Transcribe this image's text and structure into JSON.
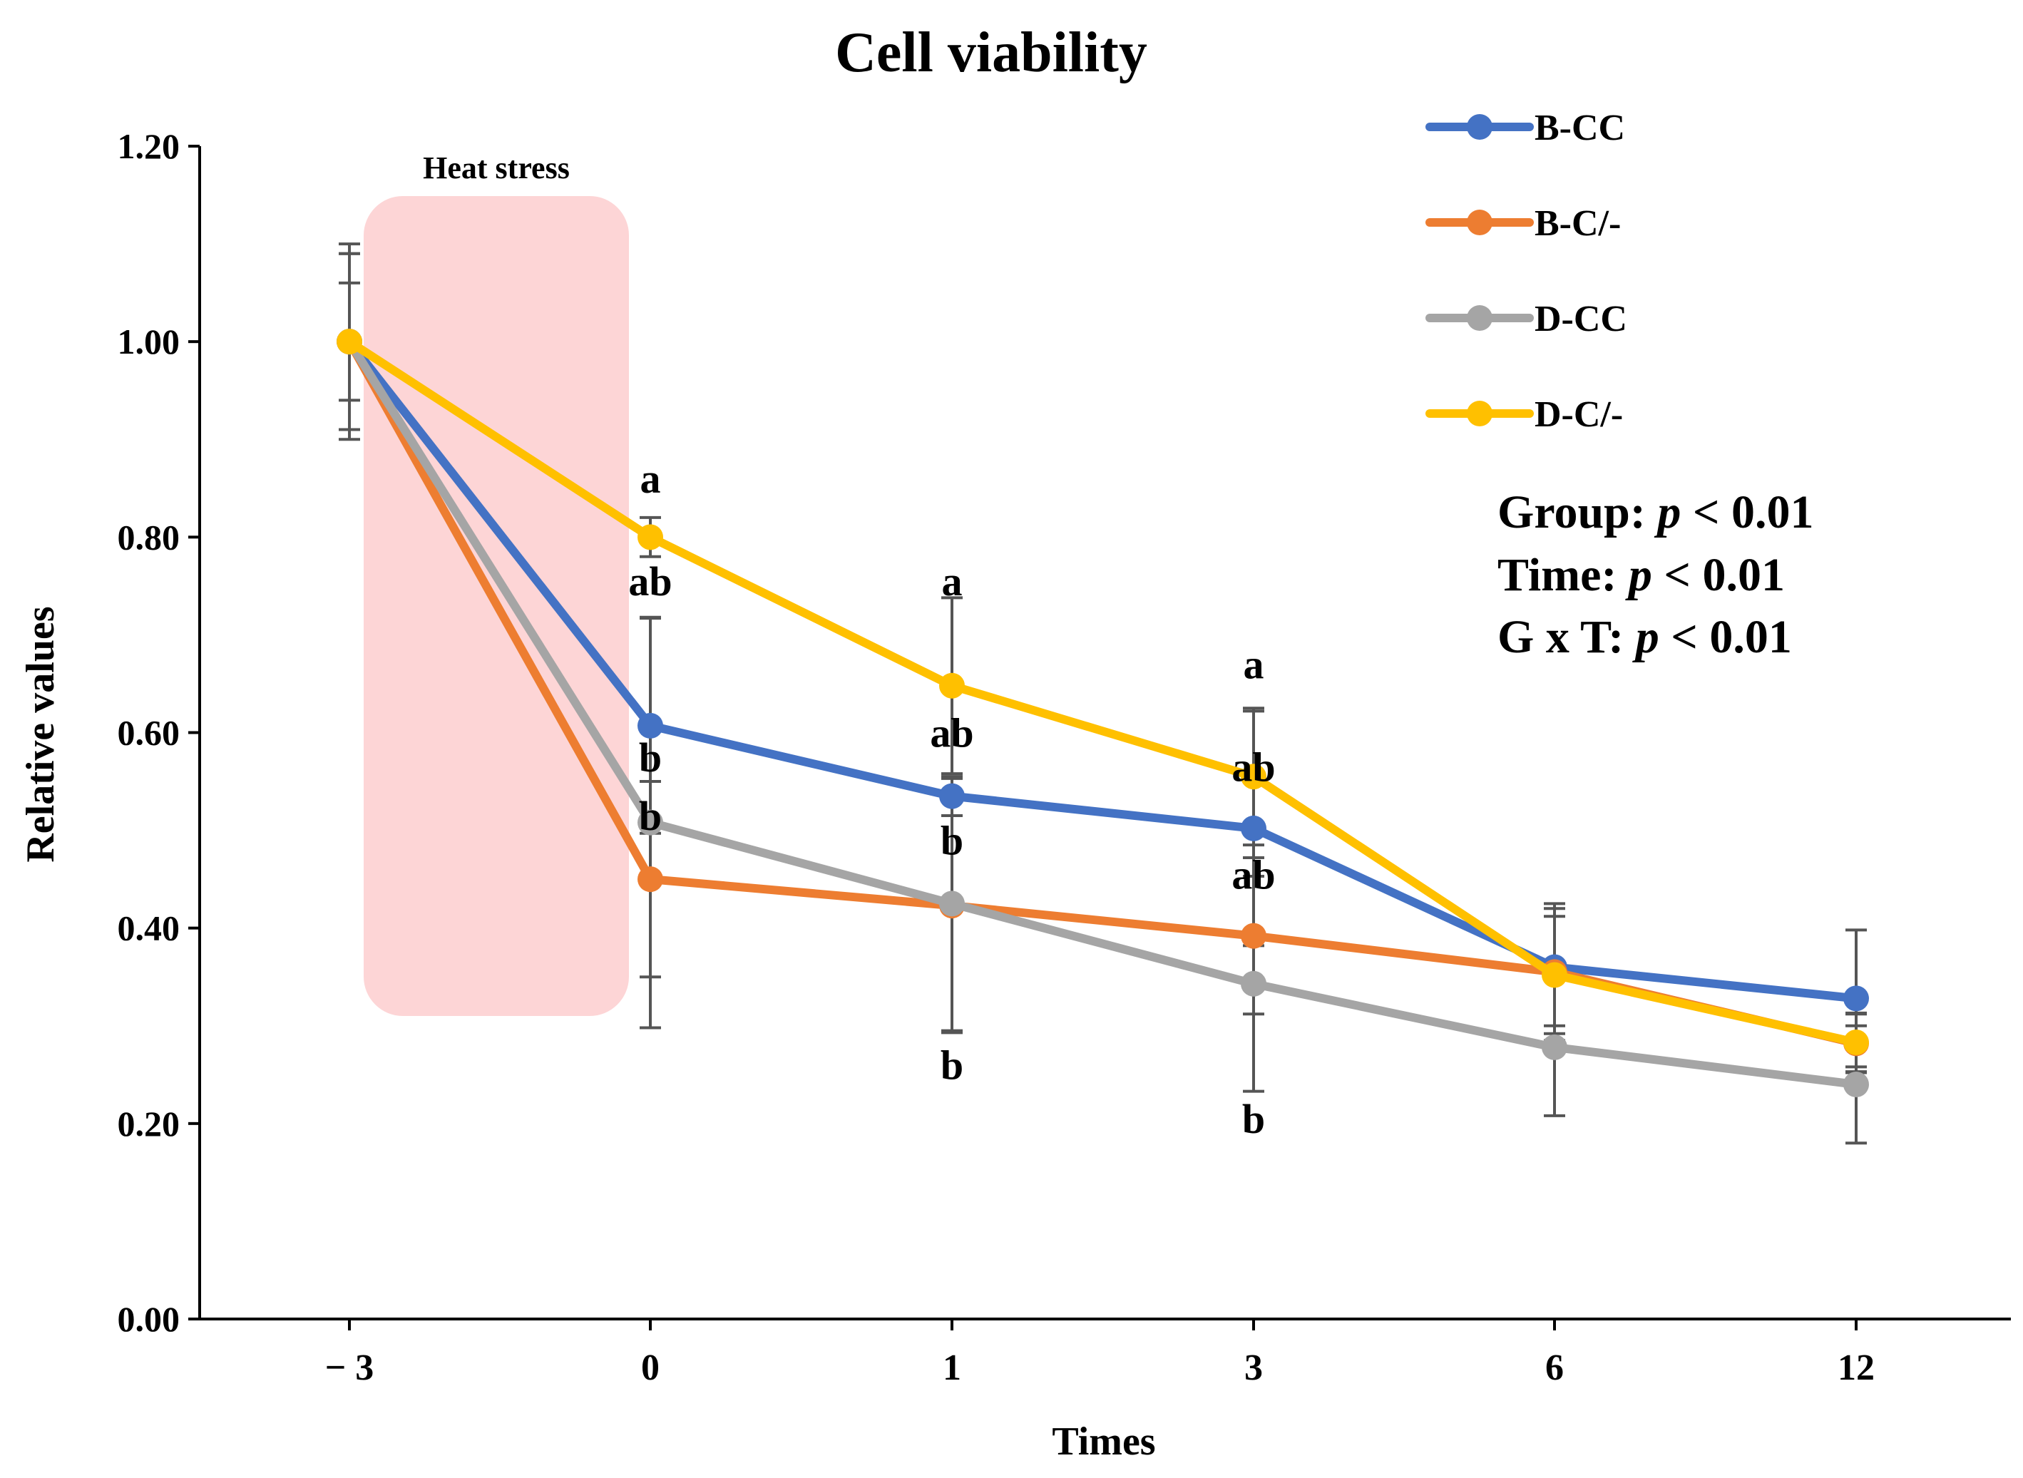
{
  "chart_data": {
    "type": "line",
    "title": "Cell viability",
    "xlabel": "Times",
    "ylabel": "Relative values",
    "categories": [
      "− 3",
      "0",
      "1",
      "3",
      "6",
      "12"
    ],
    "ylim": [
      0,
      1.2
    ],
    "yticks": [
      0,
      0.2,
      0.4,
      0.6,
      0.8,
      1.0,
      1.2
    ],
    "ytick_labels": [
      "0.00",
      "0.20",
      "0.40",
      "0.60",
      "0.80",
      "1.00",
      "1.20"
    ],
    "grid": false,
    "legend_position": "top-right",
    "shaded_region": {
      "label": "Heat stress",
      "from_category": "− 3",
      "to_category": "0"
    },
    "series": [
      {
        "name": "B-CC",
        "color": "#4472C4",
        "values": [
          1.0,
          0.607,
          0.535,
          0.502,
          0.36,
          0.328
        ],
        "errors": [
          0.1,
          0.11,
          0.02,
          0.12,
          0.06,
          0.07
        ]
      },
      {
        "name": "B-C/-",
        "color": "#ED7D31",
        "values": [
          1.0,
          0.45,
          0.423,
          0.392,
          0.355,
          0.282
        ],
        "errors": [
          0.09,
          0.1,
          0.13,
          0.08,
          0.07,
          0.03
        ]
      },
      {
        "name": "D-CC",
        "color": "#A5A5A5",
        "values": [
          1.0,
          0.508,
          0.425,
          0.343,
          0.278,
          0.24
        ],
        "errors": [
          0.06,
          0.21,
          0.13,
          0.11,
          0.07,
          0.06
        ]
      },
      {
        "name": "D-C/-",
        "color": "#FFC000",
        "values": [
          1.0,
          0.8,
          0.648,
          0.555,
          0.352,
          0.283
        ],
        "errors": [
          0.09,
          0.02,
          0.09,
          0.07,
          0.06,
          0.03
        ]
      }
    ],
    "significance_letters": [
      {
        "category": "0",
        "value": 0.86,
        "text": "a"
      },
      {
        "category": "0",
        "value": 0.755,
        "text": "ab"
      },
      {
        "category": "0",
        "value": 0.575,
        "text": "b"
      },
      {
        "category": "0",
        "value": 0.515,
        "text": "b"
      },
      {
        "category": "1",
        "value": 0.755,
        "text": "a"
      },
      {
        "category": "1",
        "value": 0.6,
        "text": "ab"
      },
      {
        "category": "1",
        "value": 0.49,
        "text": "b"
      },
      {
        "category": "1",
        "value": 0.26,
        "text": "b"
      },
      {
        "category": "3",
        "value": 0.67,
        "text": "a"
      },
      {
        "category": "3",
        "value": 0.565,
        "text": "ab"
      },
      {
        "category": "3",
        "value": 0.455,
        "text": "ab"
      },
      {
        "category": "3",
        "value": 0.205,
        "text": "b"
      }
    ],
    "stats_annotation": [
      {
        "label": "Group: ",
        "p": "p",
        "rest": " < 0.01"
      },
      {
        "label": "Time: ",
        "p": "p",
        "rest": " < 0.01"
      },
      {
        "label": "G x T: ",
        "p": "p",
        "rest": " < 0.01"
      }
    ]
  }
}
